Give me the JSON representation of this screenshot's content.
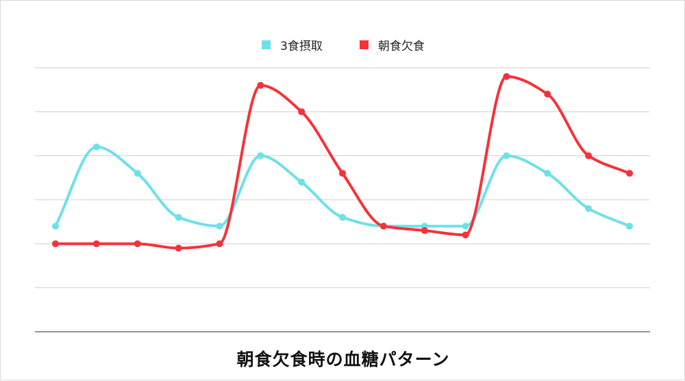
{
  "chart_data": {
    "type": "line",
    "title": "朝食欠食時の血糖パターン",
    "xlabel": "",
    "ylabel": "",
    "x": [
      1,
      2,
      3,
      4,
      5,
      6,
      7,
      8,
      9,
      10,
      11,
      12,
      13,
      14,
      15
    ],
    "ylim": [
      0,
      6
    ],
    "grid": true,
    "legend_position": "top-center",
    "series": [
      {
        "name": "3食摂取",
        "color": "#6ee0e8",
        "values": [
          2.4,
          4.2,
          3.6,
          2.6,
          2.4,
          4.0,
          3.4,
          2.6,
          2.4,
          2.4,
          2.4,
          4.0,
          3.6,
          2.8,
          2.4
        ]
      },
      {
        "name": "朝食欠食",
        "color": "#f53238",
        "values": [
          2.0,
          2.0,
          2.0,
          1.9,
          2.0,
          5.6,
          5.0,
          3.6,
          2.4,
          2.3,
          2.2,
          5.8,
          5.4,
          4.0,
          3.6
        ]
      }
    ]
  }
}
